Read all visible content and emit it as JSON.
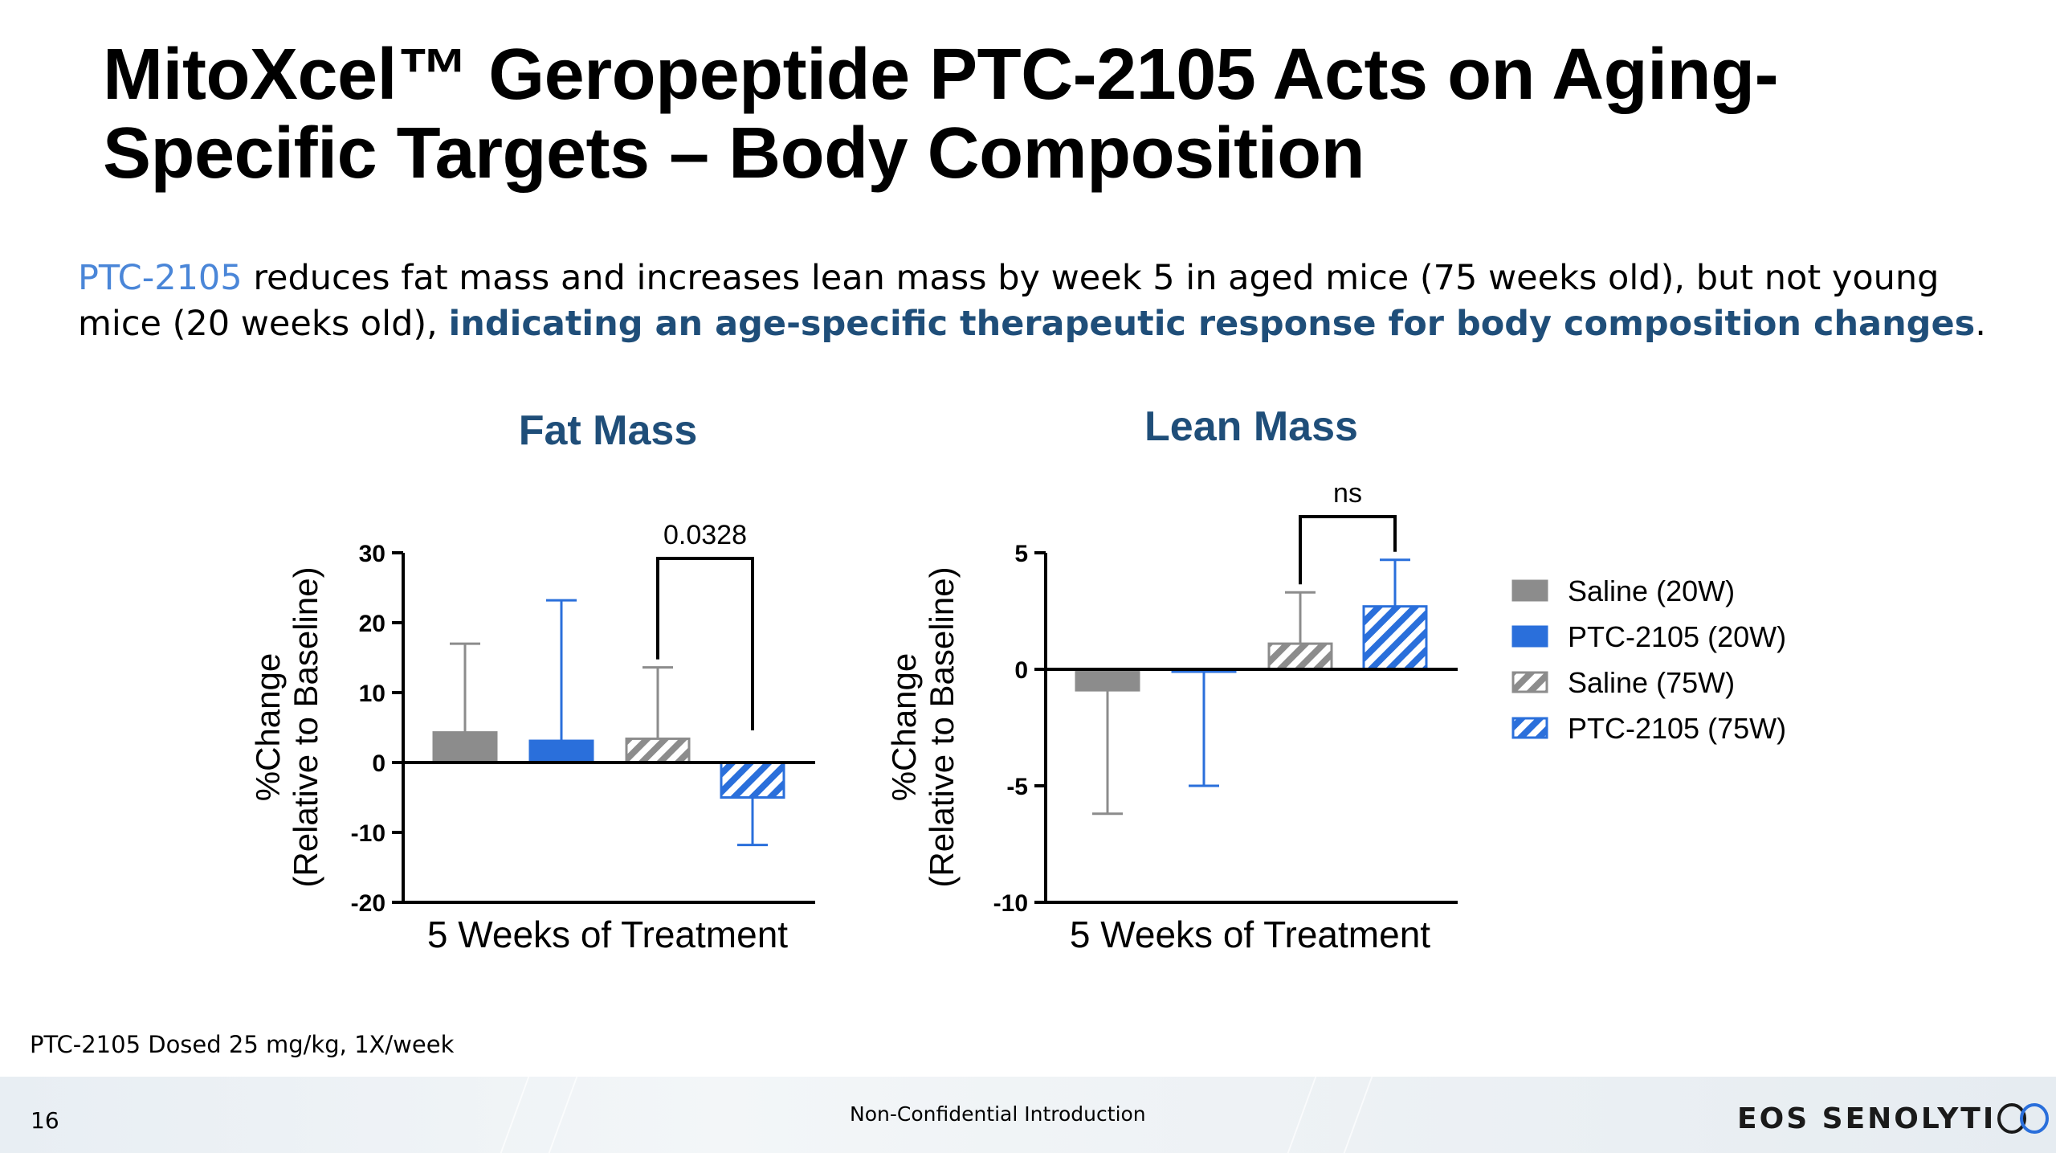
{
  "slide": {
    "title": "MitoXcel™ Geropeptide PTC-2105 Acts on Aging-Specific Targets – Body Composition",
    "subtitle_highlight": "PTC-2105",
    "subtitle_text": " reduces fat mass and increases lean mass by week 5 in aged mice (75 weeks old), but not young mice (20 weeks old), ",
    "subtitle_bold": "indicating an age-specific therapeutic response for body composition changes",
    "subtitle_end": ".",
    "footnote": "PTC-2105 Dosed 25 mg/kg, 1X/week",
    "page_number": "16",
    "footer_text": "Non-Confidential Introduction",
    "logo_text": "EOS SENOLYTI"
  },
  "colors": {
    "saline_gray": "#8c8c8c",
    "ptc_blue": "#2a6fdb",
    "title_blue": "#1f4e79",
    "highlight_blue": "#4a86d8"
  },
  "legend": [
    {
      "label": "Saline (20W)",
      "color": "#8c8c8c",
      "pattern": "solid"
    },
    {
      "label": "PTC-2105 (20W)",
      "color": "#2a6fdb",
      "pattern": "solid"
    },
    {
      "label": "Saline (75W)",
      "color": "#8c8c8c",
      "pattern": "hatch"
    },
    {
      "label": "PTC-2105 (75W)",
      "color": "#2a6fdb",
      "pattern": "hatch"
    }
  ],
  "chart_data": [
    {
      "type": "bar",
      "title": "Fat Mass",
      "ylabel": "%Change (Relative to Baseline)",
      "ylabel_line1": "%Change",
      "ylabel_line2": "(Relative to Baseline)",
      "xlabel": "5 Weeks of Treatment",
      "ylim": [
        -20,
        30
      ],
      "yticks": [
        30,
        20,
        10,
        0,
        -10,
        -20
      ],
      "series": [
        {
          "name": "Saline (20W)",
          "value": 4.3,
          "error": 12.7
        },
        {
          "name": "PTC-2105 (20W)",
          "value": 3.1,
          "error": 20.1
        },
        {
          "name": "Saline (75W)",
          "value": 3.4,
          "error": 10.2
        },
        {
          "name": "PTC-2105 (75W)",
          "value": -5.0,
          "error": 6.8
        }
      ],
      "annotation": {
        "label": "0.0328",
        "from": 2,
        "to": 3
      }
    },
    {
      "type": "bar",
      "title": "Lean Mass",
      "ylabel": "%Change (Relative to Baseline)",
      "ylabel_line1": "%Change",
      "ylabel_line2": "(Relative to Baseline)",
      "xlabel": "5 Weeks of Treatment",
      "ylim": [
        -10,
        5
      ],
      "yticks": [
        5,
        0,
        -5,
        -10
      ],
      "series": [
        {
          "name": "Saline (20W)",
          "value": -0.9,
          "error": 5.3
        },
        {
          "name": "PTC-2105 (20W)",
          "value": -0.1,
          "error": 4.9
        },
        {
          "name": "Saline (75W)",
          "value": 1.1,
          "error": 2.2
        },
        {
          "name": "PTC-2105 (75W)",
          "value": 2.7,
          "error": 2.0
        }
      ],
      "annotation": {
        "label": "ns",
        "from": 2,
        "to": 3
      }
    }
  ]
}
